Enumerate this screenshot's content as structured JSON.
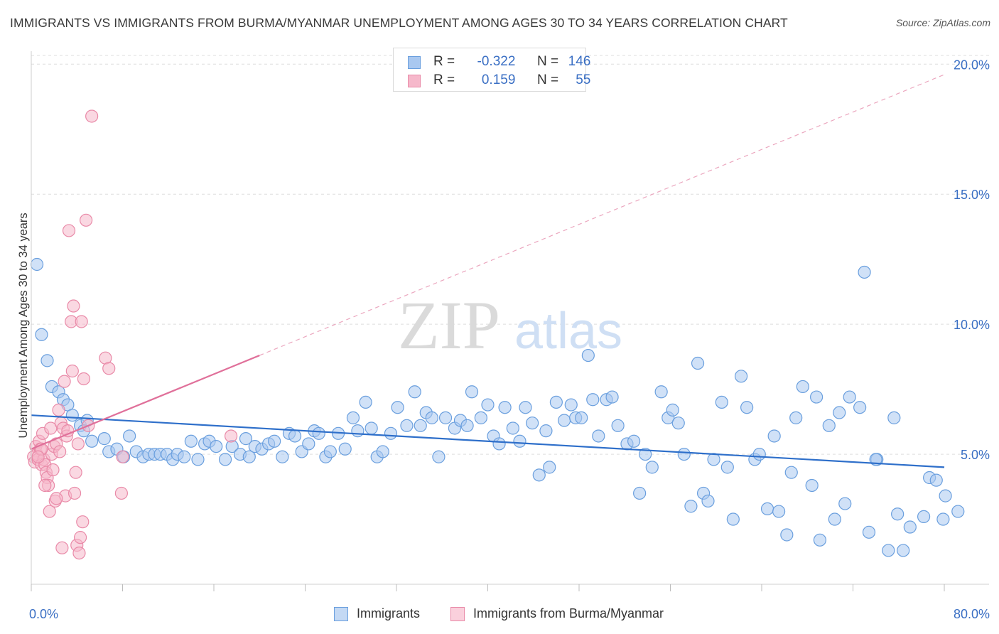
{
  "title": "IMMIGRANTS VS IMMIGRANTS FROM BURMA/MYANMAR UNEMPLOYMENT AMONG AGES 30 TO 34 YEARS CORRELATION CHART",
  "source": "Source: ZipAtlas.com",
  "watermark": {
    "zip": "ZIP",
    "atlas": "atlas"
  },
  "stats_legend": {
    "rows": [
      {
        "r_label": "R =",
        "r_value": "-0.322",
        "n_label": "N =",
        "n_value": "146",
        "color": "#a9c8f0"
      },
      {
        "r_label": "R =",
        "r_value": "0.159",
        "n_label": "N =",
        "n_value": "55",
        "color": "#f6b8cb"
      }
    ]
  },
  "colors": {
    "blue_fill": "#a9c8f0",
    "blue_stroke": "#6a9fde",
    "blue_line": "#2e6fca",
    "pink_fill": "#f6b8cb",
    "pink_stroke": "#e98aa8",
    "pink_line": "#e0709a",
    "tick_label": "#3a6fc4",
    "grid": "#dddddd"
  },
  "chart_data": {
    "type": "scatter",
    "title": "IMMIGRANTS VS IMMIGRANTS FROM BURMA/MYANMAR UNEMPLOYMENT AMONG AGES 30 TO 34 YEARS CORRELATION CHART",
    "xlabel": "",
    "ylabel": "Unemployment Among Ages 30 to 34 years",
    "xlim": [
      0,
      80
    ],
    "ylim": [
      0,
      20.5
    ],
    "x_ticks_labeled": [
      {
        "value": 0,
        "label": "0.0%"
      },
      {
        "value": 80,
        "label": "80.0%"
      }
    ],
    "y_ticks": [
      {
        "value": 5,
        "label": "5.0%"
      },
      {
        "value": 10,
        "label": "10.0%"
      },
      {
        "value": 15,
        "label": "15.0%"
      },
      {
        "value": 20,
        "label": "20.0%"
      }
    ],
    "grid": true,
    "legend_position": "bottom",
    "series": [
      {
        "name": "Immigrants",
        "color": "#a9c8f0",
        "trend": {
          "x0": 0,
          "y0": 6.5,
          "x1": 80,
          "y1": 4.5,
          "style": "solid"
        },
        "points": [
          [
            0.5,
            12.3
          ],
          [
            0.9,
            9.6
          ],
          [
            1.4,
            8.6
          ],
          [
            1.8,
            7.6
          ],
          [
            2.4,
            7.4
          ],
          [
            2.8,
            7.1
          ],
          [
            3.2,
            6.9
          ],
          [
            3.6,
            6.5
          ],
          [
            4.3,
            6.1
          ],
          [
            4.9,
            6.3
          ],
          [
            4.6,
            5.9
          ],
          [
            5.3,
            5.5
          ],
          [
            6.4,
            5.6
          ],
          [
            6.8,
            5.1
          ],
          [
            7.5,
            5.2
          ],
          [
            8.1,
            4.9
          ],
          [
            8.6,
            5.7
          ],
          [
            9.2,
            5.1
          ],
          [
            9.8,
            4.9
          ],
          [
            10.3,
            5.0
          ],
          [
            10.8,
            5.0
          ],
          [
            11.3,
            5.0
          ],
          [
            11.9,
            5.0
          ],
          [
            12.4,
            4.8
          ],
          [
            12.8,
            5.0
          ],
          [
            13.4,
            4.9
          ],
          [
            14.0,
            5.5
          ],
          [
            14.6,
            4.8
          ],
          [
            15.2,
            5.4
          ],
          [
            15.6,
            5.5
          ],
          [
            16.2,
            5.3
          ],
          [
            17.0,
            4.8
          ],
          [
            17.6,
            5.3
          ],
          [
            18.3,
            5.0
          ],
          [
            18.8,
            5.6
          ],
          [
            19.1,
            4.9
          ],
          [
            19.6,
            5.3
          ],
          [
            20.2,
            5.2
          ],
          [
            20.8,
            5.4
          ],
          [
            21.3,
            5.5
          ],
          [
            22.0,
            4.9
          ],
          [
            22.6,
            5.8
          ],
          [
            23.1,
            5.7
          ],
          [
            23.7,
            5.1
          ],
          [
            24.3,
            5.4
          ],
          [
            24.8,
            5.9
          ],
          [
            25.2,
            5.8
          ],
          [
            25.8,
            4.9
          ],
          [
            26.2,
            5.1
          ],
          [
            26.9,
            5.8
          ],
          [
            27.5,
            5.2
          ],
          [
            28.2,
            6.4
          ],
          [
            28.6,
            5.9
          ],
          [
            29.3,
            7.0
          ],
          [
            29.8,
            6.0
          ],
          [
            30.3,
            4.9
          ],
          [
            30.8,
            5.1
          ],
          [
            31.5,
            5.8
          ],
          [
            32.1,
            6.8
          ],
          [
            32.9,
            6.1
          ],
          [
            33.6,
            7.4
          ],
          [
            34.1,
            6.1
          ],
          [
            34.6,
            6.6
          ],
          [
            35.1,
            6.4
          ],
          [
            35.7,
            4.9
          ],
          [
            36.3,
            6.4
          ],
          [
            37.1,
            6.0
          ],
          [
            37.6,
            6.3
          ],
          [
            38.2,
            6.1
          ],
          [
            38.6,
            7.4
          ],
          [
            39.4,
            6.4
          ],
          [
            40.0,
            6.9
          ],
          [
            40.5,
            5.7
          ],
          [
            41.0,
            5.4
          ],
          [
            41.5,
            6.8
          ],
          [
            42.2,
            6.0
          ],
          [
            42.8,
            5.5
          ],
          [
            43.3,
            6.8
          ],
          [
            43.9,
            6.2
          ],
          [
            44.5,
            4.2
          ],
          [
            45.1,
            5.9
          ],
          [
            45.4,
            4.5
          ],
          [
            46.0,
            7.0
          ],
          [
            46.7,
            6.3
          ],
          [
            47.3,
            6.9
          ],
          [
            47.7,
            6.4
          ],
          [
            48.2,
            6.4
          ],
          [
            48.8,
            8.8
          ],
          [
            49.2,
            7.1
          ],
          [
            49.7,
            5.7
          ],
          [
            50.4,
            7.1
          ],
          [
            50.9,
            7.2
          ],
          [
            51.4,
            6.1
          ],
          [
            52.2,
            5.4
          ],
          [
            52.8,
            5.5
          ],
          [
            53.3,
            3.5
          ],
          [
            53.8,
            5.0
          ],
          [
            54.4,
            4.5
          ],
          [
            55.2,
            7.4
          ],
          [
            55.8,
            6.4
          ],
          [
            56.2,
            6.7
          ],
          [
            56.7,
            6.2
          ],
          [
            57.2,
            5.0
          ],
          [
            57.8,
            3.0
          ],
          [
            58.4,
            8.5
          ],
          [
            58.9,
            3.5
          ],
          [
            59.3,
            3.2
          ],
          [
            59.8,
            4.8
          ],
          [
            60.5,
            7.0
          ],
          [
            61.0,
            4.5
          ],
          [
            61.5,
            2.5
          ],
          [
            62.2,
            8.0
          ],
          [
            62.7,
            6.8
          ],
          [
            63.4,
            4.8
          ],
          [
            63.8,
            5.0
          ],
          [
            64.5,
            2.9
          ],
          [
            65.1,
            5.7
          ],
          [
            65.5,
            2.8
          ],
          [
            66.2,
            1.9
          ],
          [
            66.6,
            4.3
          ],
          [
            67.0,
            6.4
          ],
          [
            67.6,
            7.6
          ],
          [
            68.4,
            3.8
          ],
          [
            68.8,
            7.2
          ],
          [
            69.1,
            1.7
          ],
          [
            69.9,
            6.1
          ],
          [
            70.4,
            2.5
          ],
          [
            70.8,
            6.6
          ],
          [
            71.3,
            3.1
          ],
          [
            71.7,
            7.2
          ],
          [
            72.6,
            6.8
          ],
          [
            73.4,
            2.0
          ],
          [
            74.1,
            4.8
          ],
          [
            75.1,
            1.3
          ],
          [
            75.6,
            6.4
          ],
          [
            75.9,
            2.7
          ],
          [
            76.4,
            1.3
          ],
          [
            77.0,
            2.2
          ],
          [
            78.2,
            2.6
          ],
          [
            78.7,
            4.1
          ],
          [
            79.3,
            4.0
          ],
          [
            79.9,
            2.5
          ],
          [
            80.1,
            3.4
          ],
          [
            81.2,
            2.8
          ],
          [
            74.0,
            4.8
          ],
          [
            73.0,
            12.0
          ]
        ]
      },
      {
        "name": "Immigrants from Burma/Myanmar",
        "color": "#f6b8cb",
        "trend": {
          "x0": 0,
          "y0": 5.2,
          "x1": 20,
          "y1": 8.8,
          "dash_to_x": 80,
          "dash_to_y": 19.6,
          "style": "solid+dashed"
        },
        "points": [
          [
            0.2,
            4.9
          ],
          [
            0.3,
            4.7
          ],
          [
            0.4,
            5.3
          ],
          [
            0.5,
            5.0
          ],
          [
            0.6,
            4.8
          ],
          [
            0.7,
            5.5
          ],
          [
            0.8,
            5.2
          ],
          [
            0.9,
            4.6
          ],
          [
            1.0,
            5.8
          ],
          [
            1.1,
            4.8
          ],
          [
            1.2,
            4.6
          ],
          [
            1.3,
            4.3
          ],
          [
            1.4,
            4.1
          ],
          [
            1.5,
            3.8
          ],
          [
            1.6,
            2.8
          ],
          [
            1.7,
            6.0
          ],
          [
            1.8,
            5.0
          ],
          [
            1.9,
            4.4
          ],
          [
            2.0,
            5.3
          ],
          [
            2.1,
            3.2
          ],
          [
            2.2,
            5.4
          ],
          [
            2.4,
            6.7
          ],
          [
            2.5,
            5.1
          ],
          [
            2.6,
            6.2
          ],
          [
            2.7,
            1.4
          ],
          [
            2.8,
            6.0
          ],
          [
            2.9,
            7.8
          ],
          [
            3.0,
            3.4
          ],
          [
            3.1,
            5.7
          ],
          [
            3.2,
            5.9
          ],
          [
            3.3,
            13.6
          ],
          [
            3.5,
            10.1
          ],
          [
            3.6,
            8.2
          ],
          [
            3.7,
            10.7
          ],
          [
            3.8,
            3.5
          ],
          [
            3.9,
            4.3
          ],
          [
            4.0,
            1.5
          ],
          [
            4.1,
            5.4
          ],
          [
            4.2,
            1.2
          ],
          [
            4.3,
            1.8
          ],
          [
            4.4,
            10.1
          ],
          [
            4.5,
            2.4
          ],
          [
            4.6,
            7.9
          ],
          [
            4.8,
            14.0
          ],
          [
            5.0,
            6.1
          ],
          [
            5.3,
            18.0
          ],
          [
            6.5,
            8.7
          ],
          [
            6.8,
            8.3
          ],
          [
            7.9,
            3.5
          ],
          [
            8.0,
            4.9
          ],
          [
            17.5,
            5.7
          ],
          [
            0.9,
            5.2
          ],
          [
            1.2,
            3.8
          ],
          [
            2.2,
            3.3
          ],
          [
            0.6,
            4.9
          ]
        ]
      }
    ]
  }
}
